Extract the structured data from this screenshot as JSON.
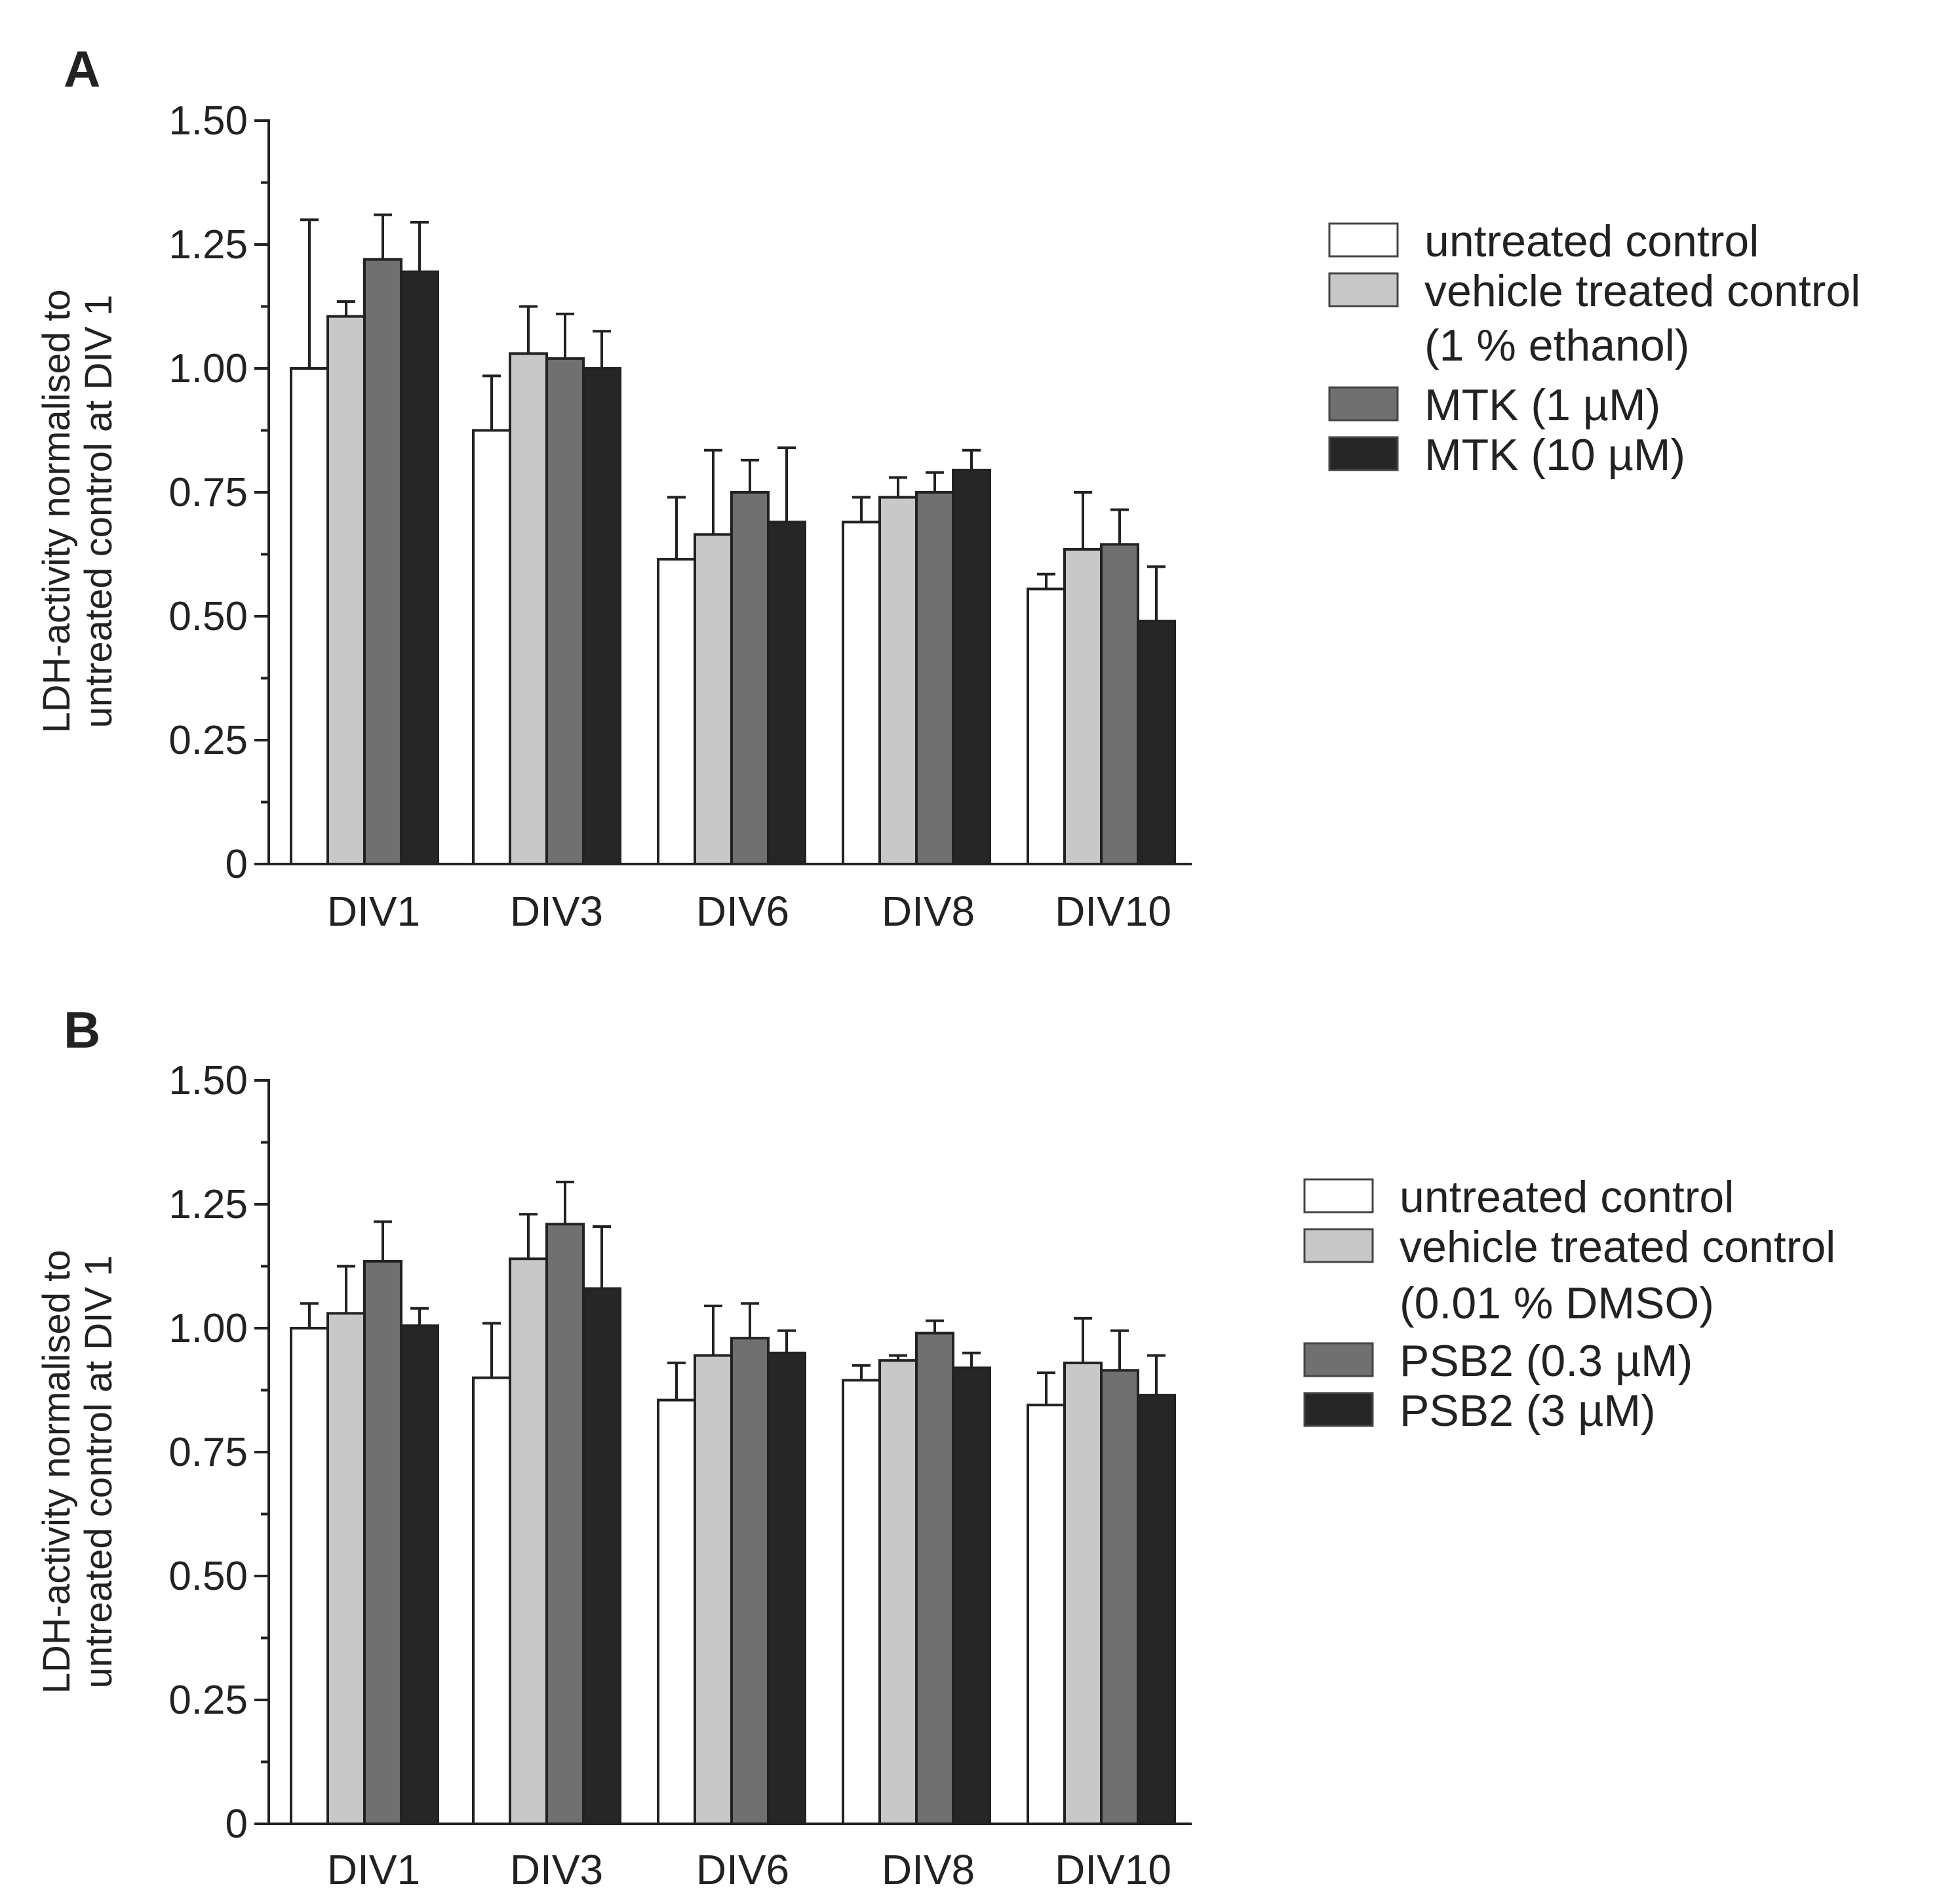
{
  "chart_data": [
    {
      "panel": "A",
      "type": "bar",
      "ylabel_line1": "LDH-activity normalised to",
      "ylabel_line2": "untreated control at DIV 1",
      "ylim": [
        0,
        1.5
      ],
      "yticks": [
        "0",
        "0.25",
        "0.50",
        "0.75",
        "1.00",
        "1.25",
        "1.50"
      ],
      "categories": [
        "DIV1",
        "DIV3",
        "DIV6",
        "DIV8",
        "DIV10"
      ],
      "series": [
        {
          "name": "untreated control",
          "color": "#ffffff",
          "values": [
            1.0,
            0.875,
            0.615,
            0.69,
            0.555
          ],
          "errors": [
            0.3,
            0.11,
            0.125,
            0.05,
            0.03
          ]
        },
        {
          "name": "vehicle treated control",
          "name_line2": "(1 % ethanol)",
          "color": "#c8c8c8",
          "values": [
            1.105,
            1.03,
            0.665,
            0.74,
            0.635
          ],
          "errors": [
            0.03,
            0.095,
            0.17,
            0.04,
            0.115
          ]
        },
        {
          "name": "MTK (1 µM)",
          "color": "#707070",
          "values": [
            1.22,
            1.02,
            0.75,
            0.75,
            0.645
          ],
          "errors": [
            0.09,
            0.09,
            0.065,
            0.04,
            0.07
          ]
        },
        {
          "name": "MTK (10 µM)",
          "color": "#262626",
          "values": [
            1.195,
            1.0,
            0.69,
            0.795,
            0.49
          ],
          "errors": [
            0.1,
            0.075,
            0.15,
            0.04,
            0.11
          ]
        }
      ]
    },
    {
      "panel": "B",
      "type": "bar",
      "ylabel_line1": "LDH-activity normalised to",
      "ylabel_line2": "untreated control at DIV 1",
      "ylim": [
        0,
        1.5
      ],
      "yticks": [
        "0",
        "0.25",
        "0.50",
        "0.75",
        "1.00",
        "1.25",
        "1.50"
      ],
      "categories": [
        "DIV1",
        "DIV3",
        "DIV6",
        "DIV8",
        "DIV10"
      ],
      "series": [
        {
          "name": "untreated control",
          "color": "#ffffff",
          "values": [
            1.0,
            0.9,
            0.855,
            0.895,
            0.845
          ],
          "errors": [
            0.05,
            0.11,
            0.075,
            0.03,
            0.065
          ]
        },
        {
          "name": "vehicle treated control",
          "name_line2": "(0.01 % DMSO)",
          "color": "#c8c8c8",
          "values": [
            1.03,
            1.14,
            0.945,
            0.935,
            0.93
          ],
          "errors": [
            0.095,
            0.09,
            0.1,
            0.01,
            0.09
          ]
        },
        {
          "name": "PSB2 (0.3 µM)",
          "color": "#707070",
          "values": [
            1.135,
            1.21,
            0.98,
            0.99,
            0.915
          ],
          "errors": [
            0.08,
            0.085,
            0.07,
            0.025,
            0.08
          ]
        },
        {
          "name": "PSB2 (3 µM)",
          "color": "#262626",
          "values": [
            1.005,
            1.08,
            0.95,
            0.92,
            0.865
          ],
          "errors": [
            0.035,
            0.125,
            0.045,
            0.03,
            0.08
          ]
        }
      ]
    }
  ]
}
